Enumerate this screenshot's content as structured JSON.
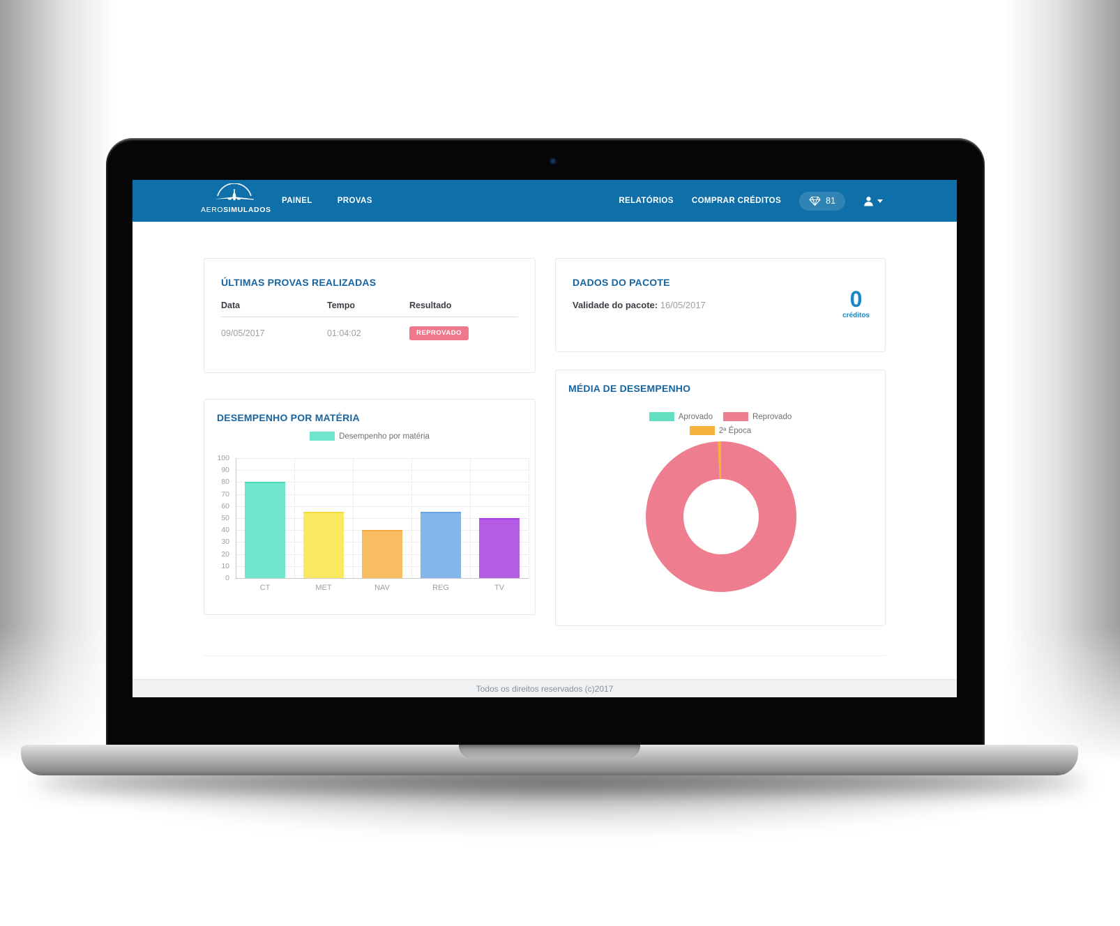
{
  "navbar": {
    "brand": {
      "name_light": "AERO",
      "name_bold": "SIMULADOS"
    },
    "links_left": [
      {
        "label": "PAINEL"
      },
      {
        "label": "PROVAS"
      }
    ],
    "links_right": [
      {
        "label": "RELATÓRIOS"
      },
      {
        "label": "COMPRAR CRÉDITOS"
      }
    ],
    "credits_badge": "81"
  },
  "cards": {
    "ultimas_provas": {
      "title": "ÚLTIMAS PROVAS REALIZADAS",
      "columns": [
        "Data",
        "Tempo",
        "Resultado"
      ],
      "rows": [
        {
          "data": "09/05/2017",
          "tempo": "01:04:02",
          "resultado": "REPROVADO"
        }
      ]
    },
    "dados_pacote": {
      "title": "DADOS DO PACOTE",
      "validade_label": "Validade do pacote:",
      "validade_value": "16/05/2017",
      "creditos_value": "0",
      "creditos_label": "créditos"
    },
    "desempenho": {
      "title": "DESEMPENHO POR MATÉRIA"
    },
    "media": {
      "title": "MÉDIA DE DESEMPENHO"
    }
  },
  "footer": {
    "text": "Todos os direitos reservados (c)2017"
  },
  "icons": {
    "credits": "gem-icon",
    "account": "user-icon",
    "account_caret": "caret-down-icon",
    "brand": "airplane-logo-icon"
  },
  "colors": {
    "navbar_blue": "#0f70a9",
    "title_blue": "#17649f",
    "credits_blue": "#1787c5",
    "badge_pink": "#f0788c",
    "footer_bg": "#eff1f3"
  },
  "chart_data": [
    {
      "type": "bar",
      "title": "Desempenho por matéria",
      "categories": [
        "CT",
        "MET",
        "NAV",
        "REG",
        "TV"
      ],
      "values": [
        80,
        55,
        40,
        55,
        50
      ],
      "bar_colors": [
        "#6fe5cb",
        "#f9e860",
        "#f8bd60",
        "#85b6ea",
        "#b55ce5"
      ],
      "bar_border_colors": [
        "#4bdcba",
        "#f2da38",
        "#f3ab42",
        "#66a4e4",
        "#a93fe0"
      ],
      "legend": [
        {
          "label": "Desempenho por matéria",
          "color": "#6fe5cb"
        }
      ],
      "xlabel": "",
      "ylabel": "",
      "ylim": [
        0,
        100
      ],
      "ytick_step": 10,
      "grid": true,
      "legend_position": "top"
    },
    {
      "type": "doughnut",
      "title": "Média de desempenho",
      "labels": [
        "Aprovado",
        "Reprovado",
        "2ª Época"
      ],
      "values": [
        0,
        99.3,
        0.7
      ],
      "colors": [
        "#63e0c2",
        "#ef7d90",
        "#f6b33c"
      ],
      "legend_position": "top"
    }
  ]
}
